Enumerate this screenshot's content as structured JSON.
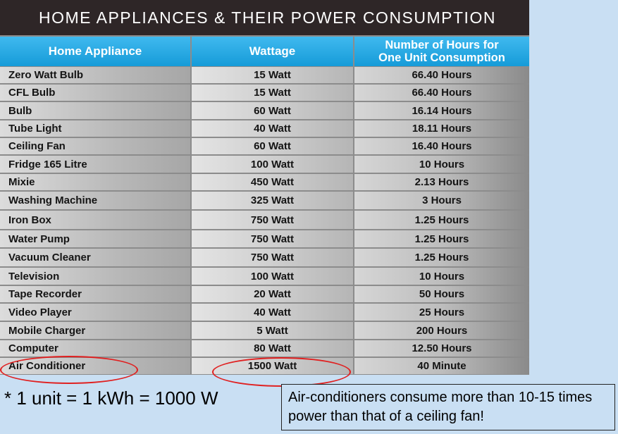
{
  "title": "HOME APPLIANCES & THEIR POWER CONSUMPTION",
  "columns": {
    "appliance": "Home Appliance",
    "wattage": "Wattage",
    "hours_line1": "Number of Hours for",
    "hours_line2": "One Unit Consumption"
  },
  "rows": [
    {
      "appliance": "Zero Watt Bulb",
      "wattage": "15 Watt",
      "hours": "66.40 Hours"
    },
    {
      "appliance": "CFL Bulb",
      "wattage": "15 Watt",
      "hours": "66.40 Hours"
    },
    {
      "appliance": "Bulb",
      "wattage": "60 Watt",
      "hours": "16.14 Hours"
    },
    {
      "appliance": "Tube Light",
      "wattage": "40 Watt",
      "hours": "18.11 Hours"
    },
    {
      "appliance": "Ceiling Fan",
      "wattage": "60 Watt",
      "hours": "16.40 Hours"
    },
    {
      "appliance": "Fridge 165 Litre",
      "wattage": "100 Watt",
      "hours": "10 Hours"
    },
    {
      "appliance": "Mixie",
      "wattage": "450 Watt",
      "hours": "2.13 Hours"
    },
    {
      "appliance": "Washing Machine",
      "wattage": "325 Watt",
      "hours": "3 Hours"
    },
    {
      "appliance": "Iron Box",
      "wattage": "750 Watt",
      "hours": "1.25 Hours"
    },
    {
      "appliance": "Water Pump",
      "wattage": "750 Watt",
      "hours": "1.25 Hours"
    },
    {
      "appliance": "Vacuum Cleaner",
      "wattage": "750 Watt",
      "hours": "1.25 Hours"
    },
    {
      "appliance": "Television",
      "wattage": "100 Watt",
      "hours": "10 Hours"
    },
    {
      "appliance": "Tape Recorder",
      "wattage": "20 Watt",
      "hours": "50 Hours"
    },
    {
      "appliance": "Video Player",
      "wattage": "40 Watt",
      "hours": "25 Hours"
    },
    {
      "appliance": "Mobile Charger",
      "wattage": "5 Watt",
      "hours": "200 Hours"
    },
    {
      "appliance": "Computer",
      "wattage": "80 Watt",
      "hours": "12.50 Hours"
    },
    {
      "appliance": "Air Conditioner",
      "wattage": "1500 Watt",
      "hours": "40 Minute"
    }
  ],
  "note_unit": "* 1 unit = 1 kWh = 1000 W",
  "note_box": "Air-conditioners consume more than 10-15 times power than that of a ceiling fan!"
}
